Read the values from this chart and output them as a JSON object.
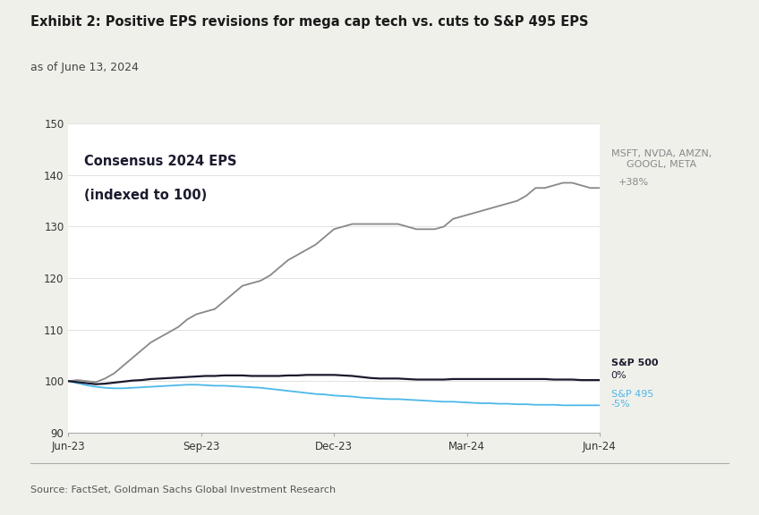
{
  "title": "Exhibit 2: Positive EPS revisions for mega cap tech vs. cuts to S&P 495 EPS",
  "subtitle": "as of June 13, 2024",
  "source": "Source: FactSet, Goldman Sachs Global Investment Research",
  "inner_label_line1": "Consensus 2024 EPS",
  "inner_label_line2": "(indexed to 100)",
  "ylim": [
    90,
    150
  ],
  "yticks": [
    90,
    100,
    110,
    120,
    130,
    140,
    150
  ],
  "xtick_labels": [
    "Jun-23",
    "Sep-23",
    "Dec-23",
    "Mar-24",
    "Jun-24"
  ],
  "sp5_label": "MSFT, NVDA, AMZN,\nGOOGL, META",
  "sp5_pct": "+38%",
  "sp500_label": "S&P 500",
  "sp500_pct": "0%",
  "sp495_label": "S&P 495",
  "sp495_pct": "-5%",
  "color_sp5": "#888888",
  "color_sp500": "#1a1a2e",
  "color_sp495": "#4db8e8",
  "background_color": "#f0f0eb",
  "plot_bg_color": "#ffffff",
  "sp5_data": [
    100.0,
    100.2,
    100.0,
    99.8,
    100.5,
    101.5,
    103.0,
    104.5,
    106.0,
    107.5,
    108.5,
    109.5,
    110.5,
    112.0,
    113.0,
    113.5,
    114.0,
    115.5,
    117.0,
    118.5,
    119.0,
    119.5,
    120.5,
    122.0,
    123.5,
    124.5,
    125.5,
    126.5,
    128.0,
    129.5,
    130.0,
    130.5,
    130.5,
    130.5,
    130.5,
    130.5,
    130.5,
    130.0,
    129.5,
    129.5,
    129.5,
    130.0,
    131.5,
    132.0,
    132.5,
    133.0,
    133.5,
    134.0,
    134.5,
    135.0,
    136.0,
    137.5,
    137.5,
    138.0,
    138.5,
    138.5,
    138.0,
    137.5,
    137.5
  ],
  "sp500_data": [
    100.0,
    99.8,
    99.6,
    99.4,
    99.5,
    99.7,
    99.9,
    100.1,
    100.2,
    100.4,
    100.5,
    100.6,
    100.7,
    100.8,
    100.9,
    101.0,
    101.0,
    101.1,
    101.1,
    101.1,
    101.0,
    101.0,
    101.0,
    101.0,
    101.1,
    101.1,
    101.2,
    101.2,
    101.2,
    101.2,
    101.1,
    101.0,
    100.8,
    100.6,
    100.5,
    100.5,
    100.5,
    100.4,
    100.3,
    100.3,
    100.3,
    100.3,
    100.4,
    100.4,
    100.4,
    100.4,
    100.4,
    100.4,
    100.4,
    100.4,
    100.4,
    100.4,
    100.4,
    100.3,
    100.3,
    100.3,
    100.2,
    100.2,
    100.2
  ],
  "sp495_data": [
    100.0,
    99.6,
    99.2,
    98.9,
    98.7,
    98.6,
    98.6,
    98.7,
    98.8,
    98.9,
    99.0,
    99.1,
    99.2,
    99.3,
    99.3,
    99.2,
    99.1,
    99.1,
    99.0,
    98.9,
    98.8,
    98.7,
    98.5,
    98.3,
    98.1,
    97.9,
    97.7,
    97.5,
    97.4,
    97.2,
    97.1,
    97.0,
    96.8,
    96.7,
    96.6,
    96.5,
    96.5,
    96.4,
    96.3,
    96.2,
    96.1,
    96.0,
    96.0,
    95.9,
    95.8,
    95.7,
    95.7,
    95.6,
    95.6,
    95.5,
    95.5,
    95.4,
    95.4,
    95.4,
    95.3,
    95.3,
    95.3,
    95.3,
    95.3
  ]
}
